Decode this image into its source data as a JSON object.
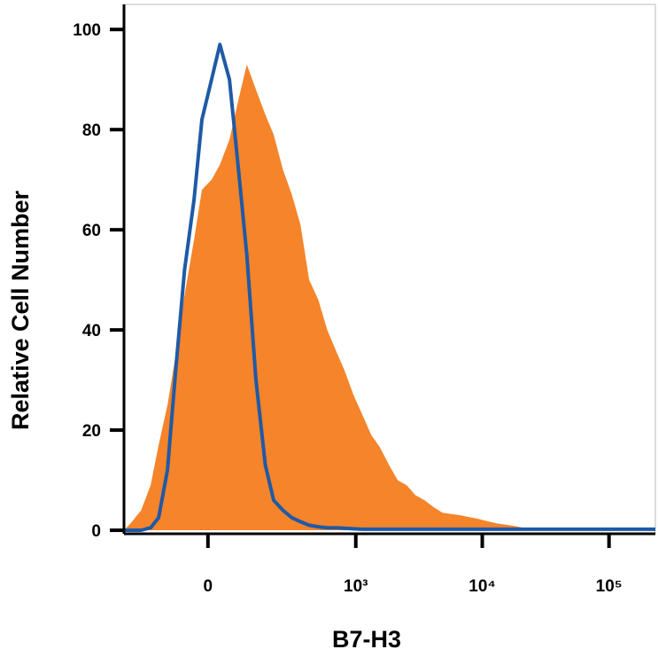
{
  "chart_data": {
    "type": "histogram-overlay",
    "x_label": "B7-H3",
    "y_label": "Relative Cell Number",
    "xscale": "biexponential",
    "xlim": [
      -300,
      232000
    ],
    "ylim": [
      -0.7,
      105
    ],
    "xticks": [
      0,
      {
        "value": 1000,
        "label": "10³"
      },
      {
        "value": 10000,
        "label": "10⁴"
      },
      {
        "value": 100000,
        "label": "10⁵"
      }
    ],
    "yticks": [
      0,
      20,
      40,
      60,
      80,
      100
    ],
    "x": [
      -300,
      -260,
      -210,
      -170,
      -140,
      -110,
      -85,
      -60,
      -35,
      -15,
      9,
      30,
      55,
      80,
      105,
      135,
      170,
      205,
      250,
      300,
      355,
      420,
      500,
      590,
      690,
      810,
      960,
      1130,
      1330,
      1560,
      1840,
      2150,
      2530,
      2970,
      3510,
      4140,
      4850,
      6690,
      9210,
      12800,
      17600,
      24200,
      33400,
      232000
    ],
    "series": [
      {
        "style": "area",
        "color": "#f5842a",
        "values": [
          0,
          1.5,
          4,
          9,
          17,
          25,
          35,
          47,
          58,
          68,
          70,
          73,
          78,
          86,
          93,
          88,
          83,
          79,
          72,
          67,
          61,
          50,
          46,
          40,
          36,
          32,
          27,
          23,
          19,
          16.5,
          13,
          10,
          9,
          7,
          6,
          4.6,
          3.5,
          3,
          2.3,
          1.4,
          0.9,
          0.2,
          0,
          0
        ]
      },
      {
        "style": "line",
        "color": "#1f5aa6",
        "values": [
          0,
          0,
          0,
          0.5,
          2.5,
          12,
          32,
          52,
          66,
          82,
          90,
          97,
          90,
          72,
          55,
          30,
          13,
          6,
          4,
          2.5,
          1.7,
          1,
          0.7,
          0.5,
          0.5,
          0.4,
          0.3,
          0.2,
          0.2,
          0.2,
          0.2,
          0.2,
          0.2,
          0.2,
          0.2,
          0.2,
          0.2,
          0.2,
          0.2,
          0.2,
          0.2,
          0.2,
          0.2,
          0.2
        ]
      }
    ]
  }
}
